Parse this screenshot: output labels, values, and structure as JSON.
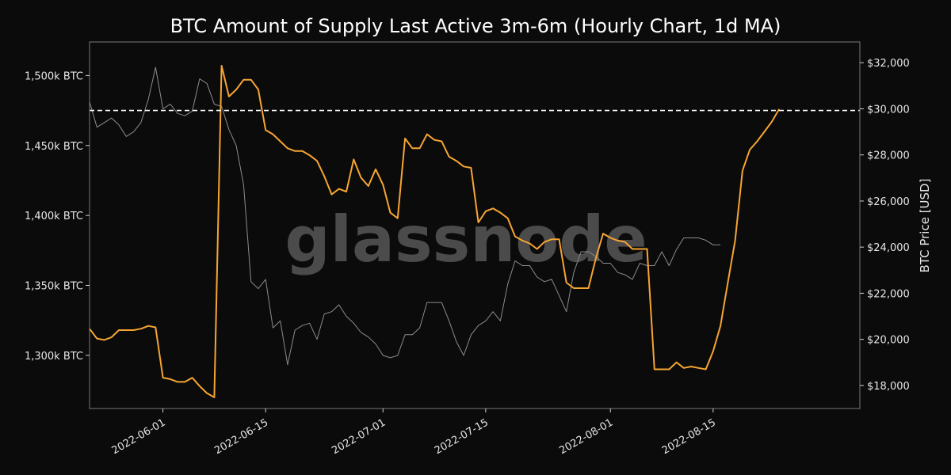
{
  "chart_data": {
    "type": "line",
    "title": "BTC Amount of Supply Last Active 3m-6m (Hourly Chart, 1d MA)",
    "watermark": "glassnode",
    "x_axis": {
      "type": "date",
      "range": [
        "2022-05-22",
        "2022-09-04"
      ],
      "tick_dates": [
        "2022-06-01",
        "2022-06-15",
        "2022-07-01",
        "2022-07-15",
        "2022-08-01",
        "2022-08-15"
      ],
      "tick_labels": [
        "2022-06-01",
        "2022-06-15",
        "2022-07-01",
        "2022-07-15",
        "2022-08-01",
        "2022-08-15"
      ]
    },
    "y_left": {
      "label": "",
      "range": [
        1262000,
        1524000
      ],
      "unit": "BTC",
      "ticks": [
        1300000,
        1350000,
        1400000,
        1450000,
        1500000
      ],
      "tick_labels": [
        "1,300k BTC",
        "1,350k BTC",
        "1,400k BTC",
        "1,450k BTC",
        "1,500k BTC"
      ]
    },
    "y_right": {
      "label": "BTC Price [USD]",
      "range": [
        17000,
        32900
      ],
      "unit": "USD",
      "ticks": [
        18000,
        20000,
        22000,
        24000,
        26000,
        28000,
        30000,
        32000
      ],
      "tick_labels": [
        "$18,000",
        "$20,000",
        "$22,000",
        "$24,000",
        "$26,000",
        "$28,000",
        "$30,000",
        "$32,000"
      ]
    },
    "reference_line": {
      "axis": "left",
      "value": 1475000,
      "style": "dashed",
      "color": "#ffffff"
    },
    "grid": false,
    "series": [
      {
        "axis": "left",
        "color": "#f7a531",
        "points": [
          [
            "2022-05-22",
            1319000
          ],
          [
            "2022-05-23",
            1312000
          ],
          [
            "2022-05-24",
            1311000
          ],
          [
            "2022-05-25",
            1313000
          ],
          [
            "2022-05-26",
            1318000
          ],
          [
            "2022-05-27",
            1318000
          ],
          [
            "2022-05-28",
            1318000
          ],
          [
            "2022-05-29",
            1319000
          ],
          [
            "2022-05-30",
            1321000
          ],
          [
            "2022-05-31",
            1320000
          ],
          [
            "2022-06-01",
            1284000
          ],
          [
            "2022-06-02",
            1283000
          ],
          [
            "2022-06-03",
            1281000
          ],
          [
            "2022-06-04",
            1281000
          ],
          [
            "2022-06-05",
            1284000
          ],
          [
            "2022-06-06",
            1278000
          ],
          [
            "2022-06-07",
            1273000
          ],
          [
            "2022-06-08",
            1270000
          ],
          [
            "2022-06-09",
            1507000
          ],
          [
            "2022-06-10",
            1485000
          ],
          [
            "2022-06-11",
            1490000
          ],
          [
            "2022-06-12",
            1497000
          ],
          [
            "2022-06-13",
            1497000
          ],
          [
            "2022-06-14",
            1490000
          ],
          [
            "2022-06-15",
            1461000
          ],
          [
            "2022-06-16",
            1458000
          ],
          [
            "2022-06-17",
            1453000
          ],
          [
            "2022-06-18",
            1448000
          ],
          [
            "2022-06-19",
            1446000
          ],
          [
            "2022-06-20",
            1446000
          ],
          [
            "2022-06-21",
            1443000
          ],
          [
            "2022-06-22",
            1439000
          ],
          [
            "2022-06-23",
            1428000
          ],
          [
            "2022-06-24",
            1415000
          ],
          [
            "2022-06-25",
            1419000
          ],
          [
            "2022-06-26",
            1417000
          ],
          [
            "2022-06-27",
            1440000
          ],
          [
            "2022-06-28",
            1427000
          ],
          [
            "2022-06-29",
            1421000
          ],
          [
            "2022-06-30",
            1433000
          ],
          [
            "2022-07-01",
            1422000
          ],
          [
            "2022-07-02",
            1402000
          ],
          [
            "2022-07-03",
            1398000
          ],
          [
            "2022-07-04",
            1455000
          ],
          [
            "2022-07-05",
            1448000
          ],
          [
            "2022-07-06",
            1448000
          ],
          [
            "2022-07-07",
            1458000
          ],
          [
            "2022-07-08",
            1454000
          ],
          [
            "2022-07-09",
            1453000
          ],
          [
            "2022-07-10",
            1442000
          ],
          [
            "2022-07-11",
            1439000
          ],
          [
            "2022-07-12",
            1435000
          ],
          [
            "2022-07-13",
            1434000
          ],
          [
            "2022-07-14",
            1395000
          ],
          [
            "2022-07-15",
            1403000
          ],
          [
            "2022-07-16",
            1405000
          ],
          [
            "2022-07-17",
            1402000
          ],
          [
            "2022-07-18",
            1398000
          ],
          [
            "2022-07-19",
            1385000
          ],
          [
            "2022-07-20",
            1382000
          ],
          [
            "2022-07-21",
            1380000
          ],
          [
            "2022-07-22",
            1376000
          ],
          [
            "2022-07-23",
            1381000
          ],
          [
            "2022-07-24",
            1383000
          ],
          [
            "2022-07-25",
            1383000
          ],
          [
            "2022-07-26",
            1352000
          ],
          [
            "2022-07-27",
            1348000
          ],
          [
            "2022-07-28",
            1348000
          ],
          [
            "2022-07-29",
            1348000
          ],
          [
            "2022-07-30",
            1369000
          ],
          [
            "2022-07-31",
            1387000
          ],
          [
            "2022-08-01",
            1384000
          ],
          [
            "2022-08-02",
            1382000
          ],
          [
            "2022-08-03",
            1381000
          ],
          [
            "2022-08-04",
            1376000
          ],
          [
            "2022-08-05",
            1376000
          ],
          [
            "2022-08-06",
            1376000
          ],
          [
            "2022-08-07",
            1290000
          ],
          [
            "2022-08-08",
            1290000
          ],
          [
            "2022-08-09",
            1290000
          ],
          [
            "2022-08-10",
            1295000
          ],
          [
            "2022-08-11",
            1291000
          ],
          [
            "2022-08-12",
            1292000
          ],
          [
            "2022-08-13",
            1291000
          ],
          [
            "2022-08-14",
            1290000
          ],
          [
            "2022-08-15",
            1303000
          ],
          [
            "2022-08-16",
            1321000
          ],
          [
            "2022-08-17",
            1352000
          ],
          [
            "2022-08-18",
            1382000
          ],
          [
            "2022-08-19",
            1432000
          ],
          [
            "2022-08-20",
            1447000
          ],
          [
            "2022-08-21",
            1453000
          ],
          [
            "2022-08-22",
            1460000
          ],
          [
            "2022-08-23",
            1467000
          ],
          [
            "2022-08-24",
            1476000
          ]
        ]
      },
      {
        "axis": "right",
        "color": "#8c8c8c",
        "points": [
          [
            "2022-05-22",
            30300
          ],
          [
            "2022-05-23",
            29200
          ],
          [
            "2022-05-24",
            29400
          ],
          [
            "2022-05-25",
            29600
          ],
          [
            "2022-05-26",
            29300
          ],
          [
            "2022-05-27",
            28800
          ],
          [
            "2022-05-28",
            29000
          ],
          [
            "2022-05-29",
            29400
          ],
          [
            "2022-05-30",
            30400
          ],
          [
            "2022-05-31",
            31800
          ],
          [
            "2022-06-01",
            30000
          ],
          [
            "2022-06-02",
            30200
          ],
          [
            "2022-06-03",
            29800
          ],
          [
            "2022-06-04",
            29700
          ],
          [
            "2022-06-05",
            29900
          ],
          [
            "2022-06-06",
            31300
          ],
          [
            "2022-06-07",
            31100
          ],
          [
            "2022-06-08",
            30200
          ],
          [
            "2022-06-09",
            30100
          ],
          [
            "2022-06-10",
            29100
          ],
          [
            "2022-06-11",
            28400
          ],
          [
            "2022-06-12",
            26700
          ],
          [
            "2022-06-13",
            22500
          ],
          [
            "2022-06-14",
            22200
          ],
          [
            "2022-06-15",
            22600
          ],
          [
            "2022-06-16",
            20500
          ],
          [
            "2022-06-17",
            20800
          ],
          [
            "2022-06-18",
            18900
          ],
          [
            "2022-06-19",
            20400
          ],
          [
            "2022-06-20",
            20600
          ],
          [
            "2022-06-21",
            20700
          ],
          [
            "2022-06-22",
            20000
          ],
          [
            "2022-06-23",
            21100
          ],
          [
            "2022-06-24",
            21200
          ],
          [
            "2022-06-25",
            21500
          ],
          [
            "2022-06-26",
            21000
          ],
          [
            "2022-06-27",
            20700
          ],
          [
            "2022-06-28",
            20300
          ],
          [
            "2022-06-29",
            20100
          ],
          [
            "2022-06-30",
            19800
          ],
          [
            "2022-07-01",
            19300
          ],
          [
            "2022-07-02",
            19200
          ],
          [
            "2022-07-03",
            19300
          ],
          [
            "2022-07-04",
            20200
          ],
          [
            "2022-07-05",
            20200
          ],
          [
            "2022-07-06",
            20500
          ],
          [
            "2022-07-07",
            21600
          ],
          [
            "2022-07-08",
            21600
          ],
          [
            "2022-07-09",
            21600
          ],
          [
            "2022-07-10",
            20800
          ],
          [
            "2022-07-11",
            19900
          ],
          [
            "2022-07-12",
            19300
          ],
          [
            "2022-07-13",
            20200
          ],
          [
            "2022-07-14",
            20600
          ],
          [
            "2022-07-15",
            20800
          ],
          [
            "2022-07-16",
            21200
          ],
          [
            "2022-07-17",
            20800
          ],
          [
            "2022-07-18",
            22400
          ],
          [
            "2022-07-19",
            23400
          ],
          [
            "2022-07-20",
            23200
          ],
          [
            "2022-07-21",
            23200
          ],
          [
            "2022-07-22",
            22700
          ],
          [
            "2022-07-23",
            22500
          ],
          [
            "2022-07-24",
            22600
          ],
          [
            "2022-07-25",
            21900
          ],
          [
            "2022-07-26",
            21200
          ],
          [
            "2022-07-27",
            22900
          ],
          [
            "2022-07-28",
            23800
          ],
          [
            "2022-07-29",
            23800
          ],
          [
            "2022-07-30",
            23600
          ],
          [
            "2022-07-31",
            23300
          ],
          [
            "2022-08-01",
            23300
          ],
          [
            "2022-08-02",
            22900
          ],
          [
            "2022-08-03",
            22800
          ],
          [
            "2022-08-04",
            22600
          ],
          [
            "2022-08-05",
            23300
          ],
          [
            "2022-08-06",
            23200
          ],
          [
            "2022-08-07",
            23200
          ],
          [
            "2022-08-08",
            23800
          ],
          [
            "2022-08-09",
            23200
          ],
          [
            "2022-08-10",
            23900
          ],
          [
            "2022-08-11",
            24400
          ],
          [
            "2022-08-12",
            24400
          ],
          [
            "2022-08-13",
            24400
          ],
          [
            "2022-08-14",
            24300
          ],
          [
            "2022-08-15",
            24100
          ],
          [
            "2022-08-16",
            24100
          ]
        ]
      }
    ]
  }
}
